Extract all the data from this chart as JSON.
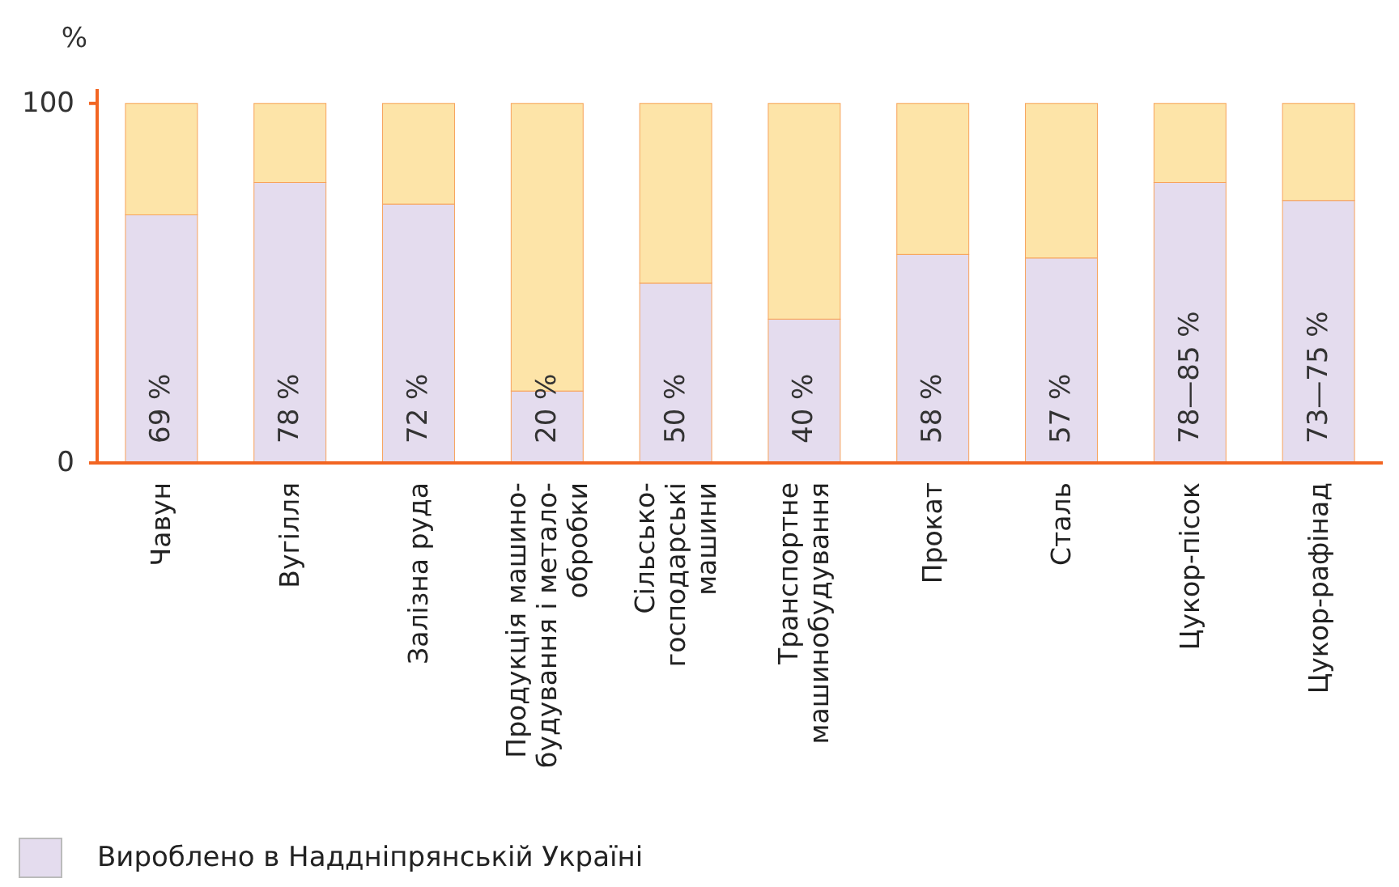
{
  "chart_data": {
    "type": "bar",
    "stacked": true,
    "ylabel": "%",
    "categories": [
      "Чавун",
      "Вугілля",
      "Залізна руда",
      "Продукція машино-\nбудування і метало-\nобробки",
      "Сільсько-\nгосподарські\nмашини",
      "Транспортне\nмашинобудування",
      "Прокат",
      "Сталь",
      "Цукор-пісок",
      "Цукор-рафінад"
    ],
    "series": [
      {
        "name": "Вироблено в Наддніпрянській Україні",
        "color": "#e4dcee",
        "values": [
          69,
          78,
          72,
          20,
          50,
          40,
          58,
          57,
          78,
          73
        ],
        "value_labels": [
          "69 %",
          "78 %",
          "72 %",
          "20 %",
          "50 %",
          "40 %",
          "58 %",
          "57 %",
          "78—85 %",
          "73—75 %"
        ]
      },
      {
        "color": "#fde4a8",
        "values": [
          31,
          22,
          28,
          80,
          50,
          60,
          42,
          43,
          22,
          27
        ]
      }
    ],
    "ylim": [
      0,
      104
    ],
    "yticks": [
      0,
      100
    ],
    "grid": false,
    "legend": "bottom left"
  }
}
